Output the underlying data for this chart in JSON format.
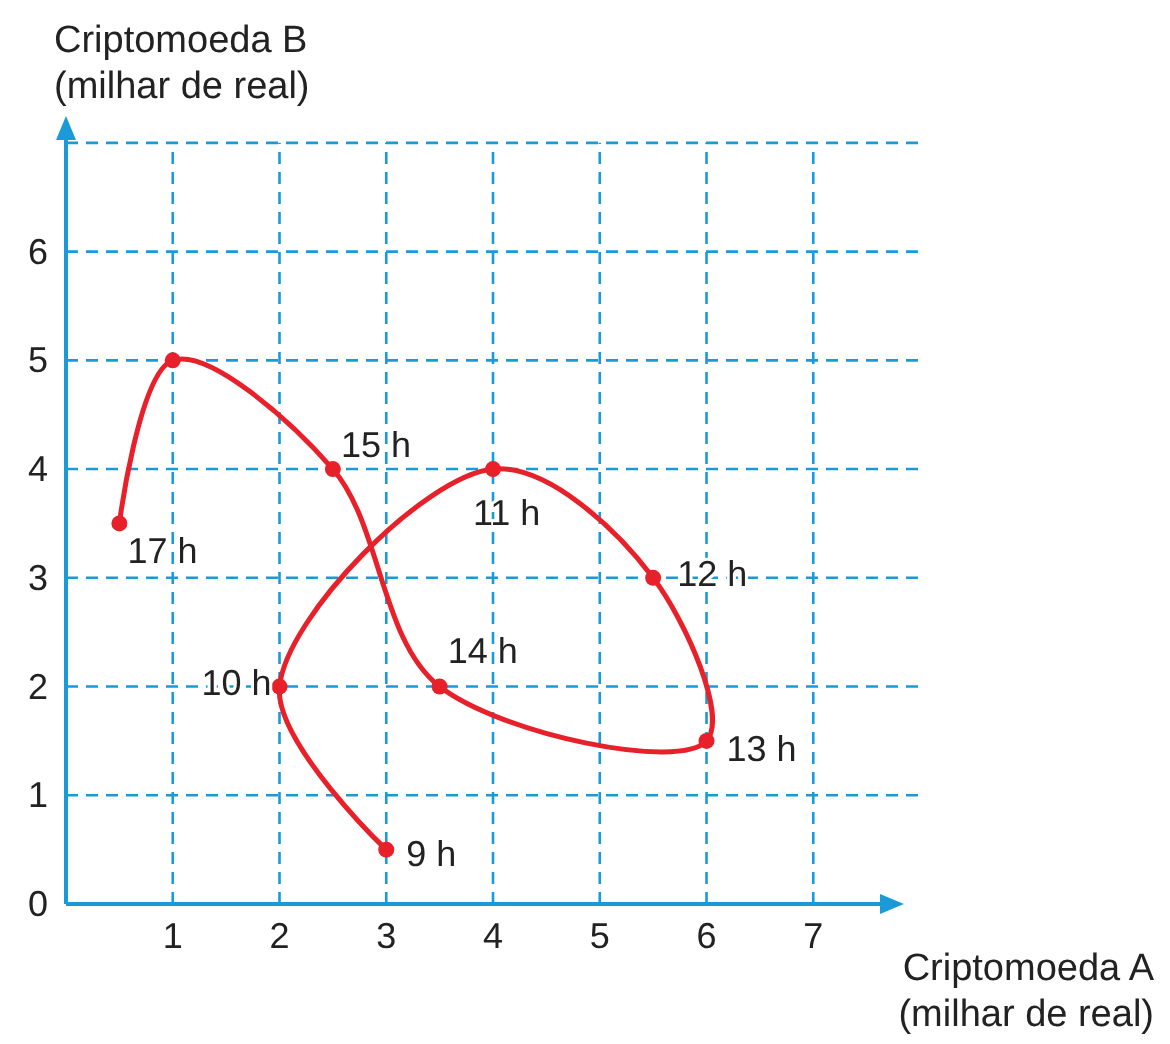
{
  "chart_data": {
    "type": "line",
    "xlabel": "Criptomoeda A\n(milhar de real)",
    "ylabel": "Criptomoeda B\n(milhar de real)",
    "x": [
      3,
      2,
      4,
      5.5,
      6,
      3.5,
      2.5,
      1,
      0.5
    ],
    "series": [
      {
        "color": "#e8202a",
        "values": [
          0.5,
          2,
          4,
          3,
          1.5,
          2,
          4,
          5,
          3.5
        ]
      }
    ],
    "annotations": [
      {
        "text": "9 h",
        "x": 3,
        "y": 0.5
      },
      {
        "text": "10 h",
        "x": 2,
        "y": 2
      },
      {
        "text": "11 h",
        "x": 4,
        "y": 4
      },
      {
        "text": "12 h",
        "x": 5.5,
        "y": 3
      },
      {
        "text": "13 h",
        "x": 6,
        "y": 1.5
      },
      {
        "text": "14 h",
        "x": 3.5,
        "y": 2
      },
      {
        "text": "15 h",
        "x": 2.5,
        "y": 4
      },
      {
        "text": "17 h",
        "x": 0.5,
        "y": 3.5
      }
    ],
    "xlim": [
      0,
      7.7
    ],
    "ylim": [
      0,
      7.1
    ],
    "xticks": [
      {
        "value": 0,
        "label": null
      },
      1,
      2,
      3,
      4,
      5,
      6,
      7
    ],
    "yticks": [
      0,
      1,
      2,
      3,
      4,
      5,
      6,
      {
        "value": 7,
        "label": null
      }
    ],
    "grid": true,
    "marker": "circle",
    "line_style": "solid"
  }
}
